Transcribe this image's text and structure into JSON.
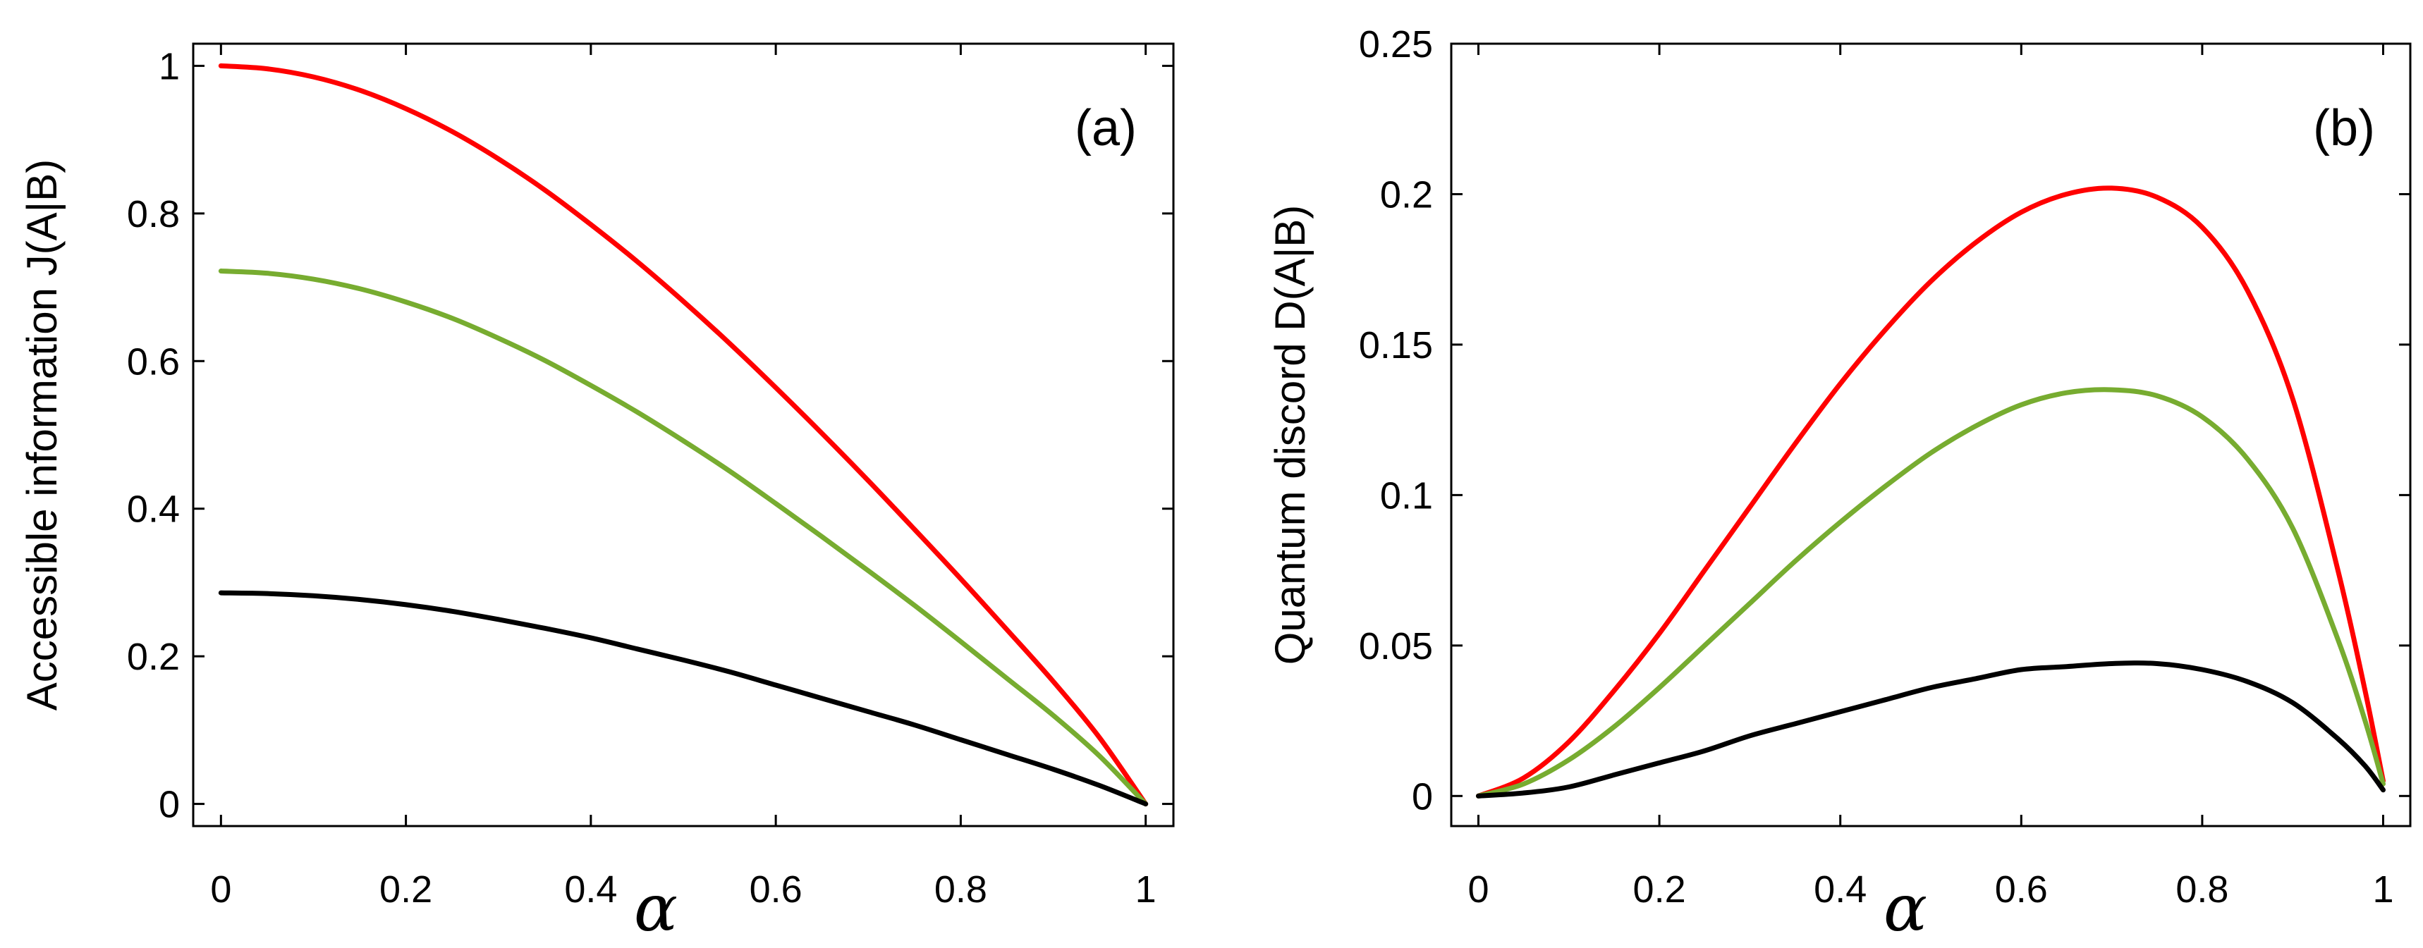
{
  "chart_data": [
    {
      "type": "line",
      "panel_label": "(a)",
      "xlabel": "α",
      "ylabel": "Accessible information J(A|B)",
      "xlim": [
        -0.03,
        1.03
      ],
      "ylim": [
        -0.03,
        1.03
      ],
      "xticks": [
        0,
        0.2,
        0.4,
        0.6,
        0.8,
        1
      ],
      "xtick_labels": [
        "0",
        "0.2",
        "0.4",
        "0.6",
        "0.8",
        "1"
      ],
      "yticks": [
        0,
        0.2,
        0.4,
        0.6,
        0.8,
        1
      ],
      "ytick_labels": [
        "0",
        "0.2",
        "0.4",
        "0.6",
        "0.8",
        "1"
      ],
      "x": [
        0,
        0.05,
        0.1,
        0.15,
        0.2,
        0.25,
        0.3,
        0.35,
        0.4,
        0.45,
        0.5,
        0.55,
        0.6,
        0.65,
        0.7,
        0.75,
        0.8,
        0.85,
        0.9,
        0.95,
        1.0
      ],
      "series": [
        {
          "name": "red",
          "color": "#ff0000",
          "values": [
            1.0,
            0.996,
            0.985,
            0.967,
            0.942,
            0.911,
            0.874,
            0.832,
            0.785,
            0.735,
            0.681,
            0.624,
            0.564,
            0.502,
            0.438,
            0.372,
            0.305,
            0.236,
            0.166,
            0.09,
            0.0
          ]
        },
        {
          "name": "green",
          "color": "#77ac30",
          "values": [
            0.722,
            0.719,
            0.711,
            0.698,
            0.68,
            0.658,
            0.631,
            0.601,
            0.567,
            0.531,
            0.492,
            0.451,
            0.407,
            0.362,
            0.316,
            0.269,
            0.22,
            0.17,
            0.12,
            0.065,
            0.0
          ]
        },
        {
          "name": "black",
          "color": "#000000",
          "values": [
            0.286,
            0.285,
            0.282,
            0.277,
            0.27,
            0.261,
            0.25,
            0.238,
            0.225,
            0.21,
            0.195,
            0.179,
            0.161,
            0.143,
            0.125,
            0.107,
            0.087,
            0.067,
            0.047,
            0.025,
            0.0
          ]
        }
      ]
    },
    {
      "type": "line",
      "panel_label": "(b)",
      "xlabel": "α",
      "ylabel": "Quantum discord D(A|B)",
      "xlim": [
        -0.03,
        1.03
      ],
      "ylim": [
        -0.01,
        0.25
      ],
      "xticks": [
        0,
        0.2,
        0.4,
        0.6,
        0.8,
        1
      ],
      "xtick_labels": [
        "0",
        "0.2",
        "0.4",
        "0.6",
        "0.8",
        "1"
      ],
      "yticks": [
        0,
        0.05,
        0.1,
        0.15,
        0.2,
        0.25
      ],
      "ytick_labels": [
        "0",
        "0.05",
        "0.1",
        "0.15",
        "0.2",
        "0.25"
      ],
      "x": [
        0,
        0.05,
        0.1,
        0.15,
        0.2,
        0.25,
        0.3,
        0.35,
        0.4,
        0.45,
        0.5,
        0.55,
        0.6,
        0.65,
        0.7,
        0.75,
        0.8,
        0.85,
        0.9,
        0.95,
        0.98,
        1.0
      ],
      "series": [
        {
          "name": "red",
          "color": "#ff0000",
          "values": [
            0.0,
            0.006,
            0.018,
            0.035,
            0.054,
            0.075,
            0.096,
            0.117,
            0.137,
            0.155,
            0.171,
            0.184,
            0.194,
            0.2,
            0.202,
            0.199,
            0.189,
            0.168,
            0.132,
            0.075,
            0.035,
            0.005
          ]
        },
        {
          "name": "green",
          "color": "#77ac30",
          "values": [
            0.0,
            0.004,
            0.012,
            0.023,
            0.036,
            0.05,
            0.064,
            0.078,
            0.091,
            0.103,
            0.114,
            0.123,
            0.13,
            0.134,
            0.135,
            0.133,
            0.126,
            0.112,
            0.089,
            0.052,
            0.025,
            0.004
          ]
        },
        {
          "name": "black",
          "color": "#000000",
          "values": [
            0.0,
            0.001,
            0.003,
            0.007,
            0.011,
            0.015,
            0.02,
            0.024,
            0.028,
            0.032,
            0.036,
            0.039,
            0.042,
            0.043,
            0.044,
            0.044,
            0.042,
            0.038,
            0.031,
            0.019,
            0.01,
            0.002
          ]
        }
      ]
    }
  ]
}
